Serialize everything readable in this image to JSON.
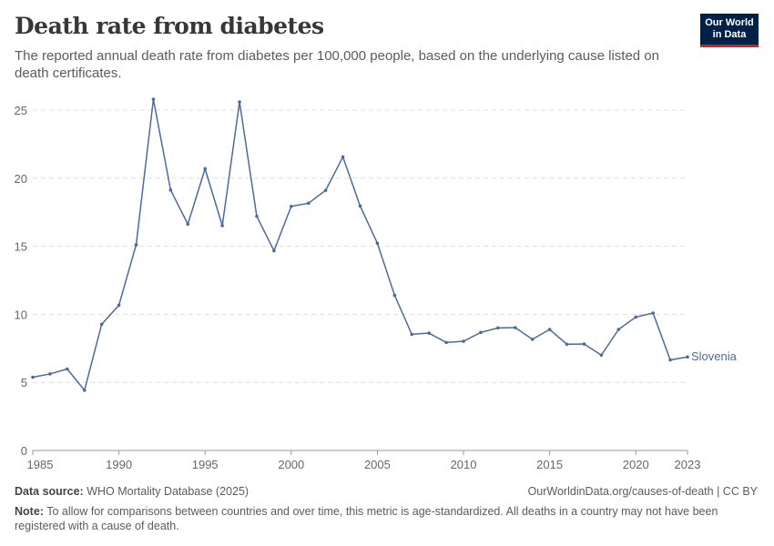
{
  "header": {
    "title": "Death rate from diabetes",
    "subtitle": "The reported annual death rate from diabetes per 100,000 people, based on the underlying cause listed on death certificates.",
    "logo": "Our World in Data"
  },
  "footer": {
    "source_label": "Data source:",
    "source": "WHO Mortality Database (2025)",
    "url": "OurWorldinData.org/causes-of-death | CC BY",
    "note_label": "Note:",
    "note": "To allow for comparisons between countries and over time, this metric is age-standardized. All deaths in a country may not have been registered with a cause of death."
  },
  "chart_data": {
    "type": "line",
    "title": "Death rate from diabetes",
    "xlim": [
      1985,
      2023
    ],
    "ylim": [
      0,
      25
    ],
    "x_ticks": [
      "1985",
      "1990",
      "1995",
      "2000",
      "2005",
      "2010",
      "2015",
      "2020",
      "2023"
    ],
    "y_ticks": [
      "0",
      "5",
      "10",
      "15",
      "20",
      "25"
    ],
    "grid": "horizontal dashed",
    "line_color": "#4c6a9c",
    "series": [
      {
        "name": "Slovenia",
        "x": [
          1985,
          1986,
          1987,
          1988,
          1989,
          1990,
          1991,
          1992,
          1993,
          1994,
          1995,
          1996,
          1997,
          1998,
          1999,
          2000,
          2001,
          2002,
          2003,
          2004,
          2005,
          2006,
          2007,
          2008,
          2009,
          2010,
          2011,
          2012,
          2013,
          2014,
          2015,
          2016,
          2017,
          2018,
          2019,
          2020,
          2021,
          2022,
          2023
        ],
        "y": [
          5.38,
          5.62,
          5.98,
          4.42,
          9.27,
          10.67,
          15.11,
          25.8,
          19.13,
          16.62,
          20.69,
          16.51,
          25.6,
          17.2,
          14.67,
          17.93,
          18.16,
          19.11,
          21.56,
          17.96,
          15.22,
          11.4,
          8.53,
          8.62,
          7.93,
          8.02,
          8.67,
          9.0,
          9.02,
          8.16,
          8.89,
          7.8,
          7.82,
          7.0,
          8.89,
          9.8,
          10.09,
          6.65,
          6.87
        ]
      }
    ]
  }
}
